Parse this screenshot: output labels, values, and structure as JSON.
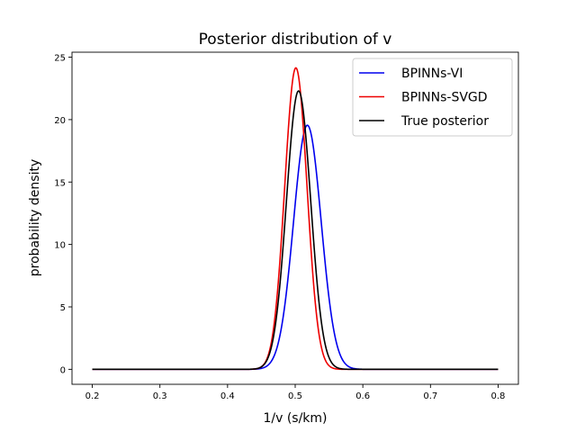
{
  "chart_data": {
    "type": "line",
    "title": "Posterior distribution of v",
    "xlabel": "1/v (s/km)",
    "ylabel": "probability density",
    "xlim": [
      0.17,
      0.83
    ],
    "ylim": [
      -1.2,
      25.4
    ],
    "xticks": [
      0.2,
      0.3,
      0.4,
      0.5,
      0.6,
      0.7,
      0.8
    ],
    "xtick_labels": [
      "0.2",
      "0.3",
      "0.4",
      "0.5",
      "0.6",
      "0.7",
      "0.8"
    ],
    "yticks": [
      0,
      5,
      10,
      15,
      20,
      25
    ],
    "ytick_labels": [
      "0",
      "5",
      "10",
      "15",
      "20",
      "25"
    ],
    "x_range": [
      0.2,
      0.8
    ],
    "legend_position": "top-right",
    "series": [
      {
        "name": "BPINNs-VI",
        "color": "#0000ee",
        "distribution": "gaussian",
        "mean": 0.518,
        "std": 0.0204,
        "peak": 19.55
      },
      {
        "name": "BPINNs-SVGD",
        "color": "#ee0000",
        "distribution": "gaussian",
        "mean": 0.501,
        "std": 0.0165,
        "peak": 24.15
      },
      {
        "name": "True posterior",
        "color": "#000000",
        "distribution": "gaussian",
        "mean": 0.505,
        "std": 0.0179,
        "peak": 22.3
      }
    ]
  }
}
